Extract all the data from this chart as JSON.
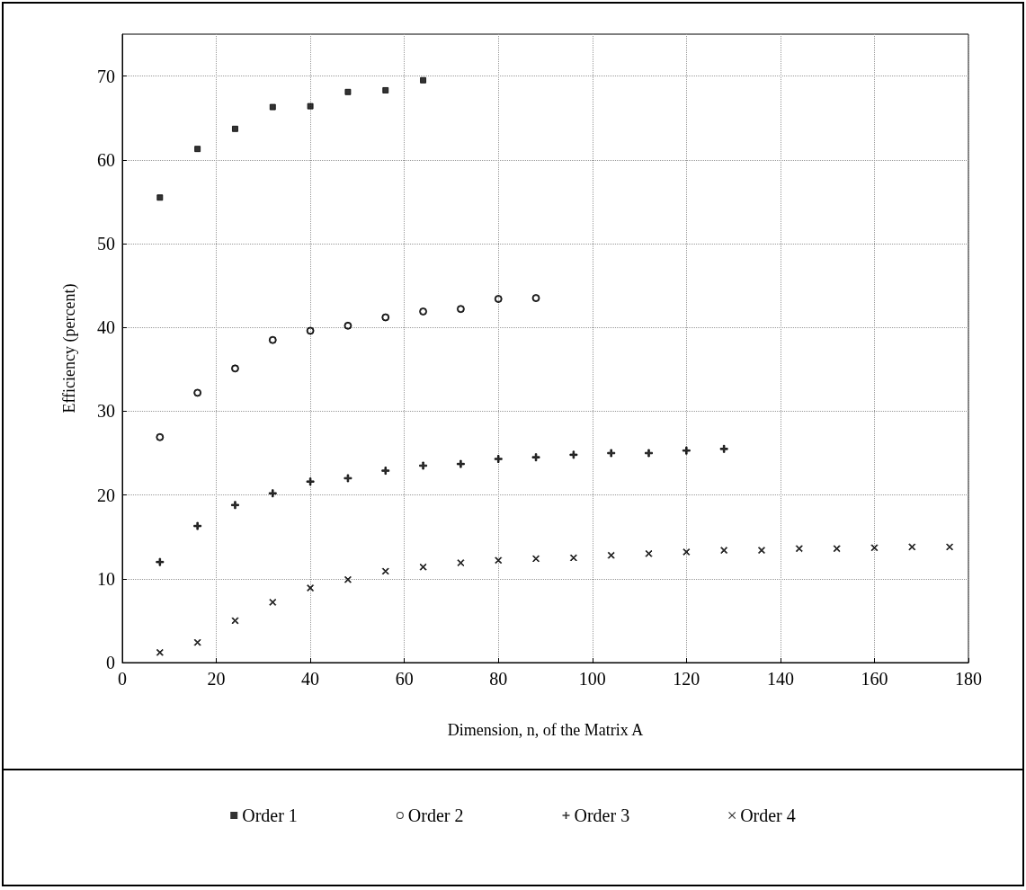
{
  "chart_data": {
    "type": "scatter",
    "xlabel": "Dimension, n, of the Matrix A",
    "ylabel": "Efficiency (percent)",
    "xlim": [
      0,
      180
    ],
    "xticks": [
      0,
      20,
      40,
      60,
      80,
      100,
      120,
      140,
      160,
      180
    ],
    "ylim": [
      0,
      75
    ],
    "yticks": [
      0,
      10,
      20,
      30,
      40,
      50,
      60,
      70
    ],
    "grid": true,
    "legend": "bottom",
    "series": [
      {
        "name": "Order 1",
        "color": "#000000",
        "marker": "square",
        "x": [
          8,
          16,
          24,
          32,
          40,
          48,
          56,
          64
        ],
        "values": [
          55.5,
          61.3,
          63.7,
          66.3,
          66.4,
          68.1,
          68.3,
          69.5
        ]
      },
      {
        "name": "Order 2",
        "color": "#000000",
        "marker": "circle",
        "x": [
          8,
          16,
          24,
          32,
          40,
          48,
          56,
          64,
          72,
          80,
          88
        ],
        "values": [
          26.9,
          32.2,
          35.1,
          38.5,
          39.6,
          40.2,
          41.2,
          41.9,
          42.2,
          43.4,
          43.5
        ]
      },
      {
        "name": "Order 3",
        "color": "#000000",
        "marker": "cross",
        "x": [
          8,
          16,
          24,
          32,
          40,
          48,
          56,
          64,
          72,
          80,
          88,
          96,
          104,
          112,
          120,
          128
        ],
        "values": [
          12.0,
          16.3,
          18.8,
          20.2,
          21.6,
          22.0,
          22.9,
          23.5,
          23.7,
          24.3,
          24.5,
          24.8,
          25.0,
          25.0,
          25.3,
          25.5
        ]
      },
      {
        "name": "Order 4",
        "color": "#000000",
        "marker": "x",
        "x": [
          8,
          16,
          24,
          32,
          40,
          48,
          56,
          64,
          72,
          80,
          88,
          96,
          104,
          112,
          120,
          128,
          136,
          144,
          152,
          160,
          168,
          176
        ],
        "values": [
          1.2,
          2.4,
          5.0,
          7.2,
          8.9,
          9.9,
          10.9,
          11.4,
          11.9,
          12.2,
          12.4,
          12.5,
          12.8,
          13.0,
          13.2,
          13.4,
          13.4,
          13.6,
          13.6,
          13.7,
          13.8,
          13.8
        ]
      }
    ]
  }
}
